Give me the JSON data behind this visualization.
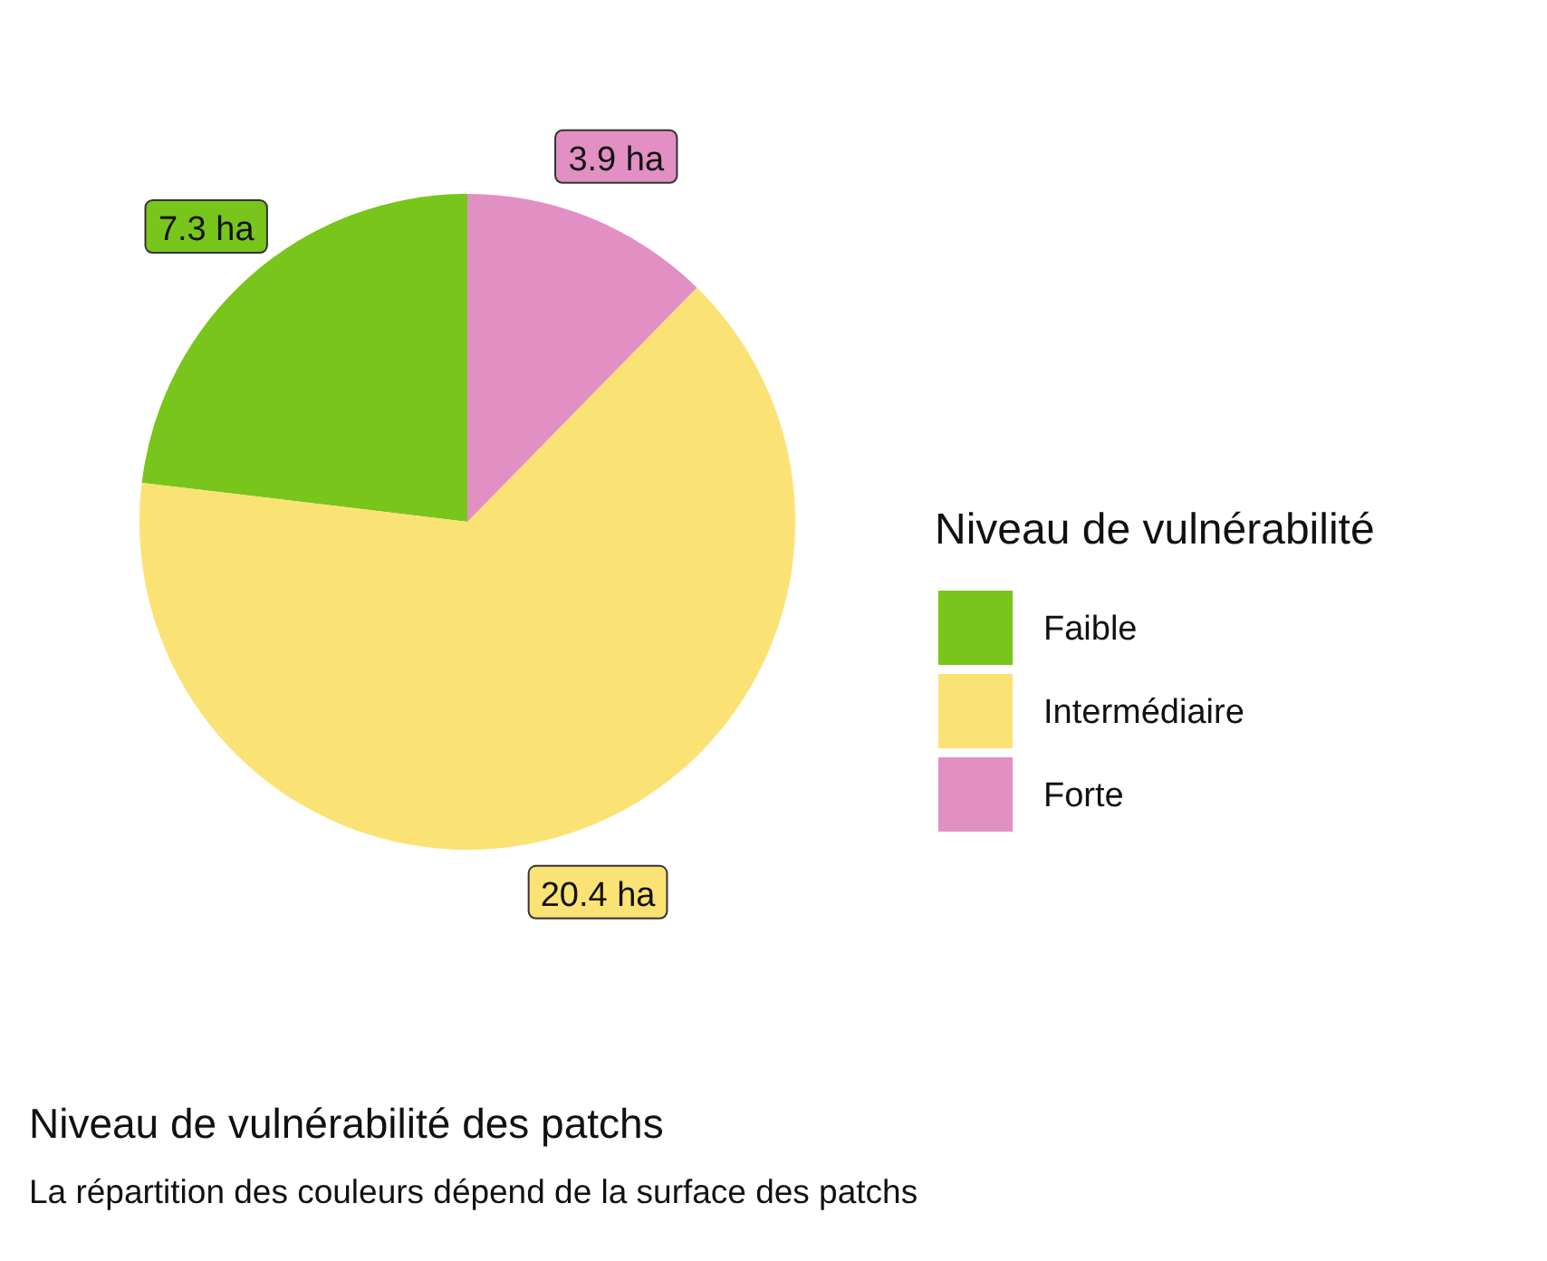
{
  "chart_data": {
    "type": "pie",
    "title": "Niveau de vulnérabilité des patchs",
    "subtitle": "La répartition des couleurs dépend de la surface des patchs",
    "legend_title": "Niveau de vulnérabilité",
    "categories": [
      "Faible",
      "Intermédiaire",
      "Forte"
    ],
    "values": [
      7.3,
      20.4,
      3.9
    ],
    "colors": [
      "#78c51b",
      "#fbe274",
      "#e28fc4"
    ],
    "value_labels": [
      "7.3 ha",
      "20.4 ha",
      "3.9 ha"
    ],
    "legend": "right"
  }
}
